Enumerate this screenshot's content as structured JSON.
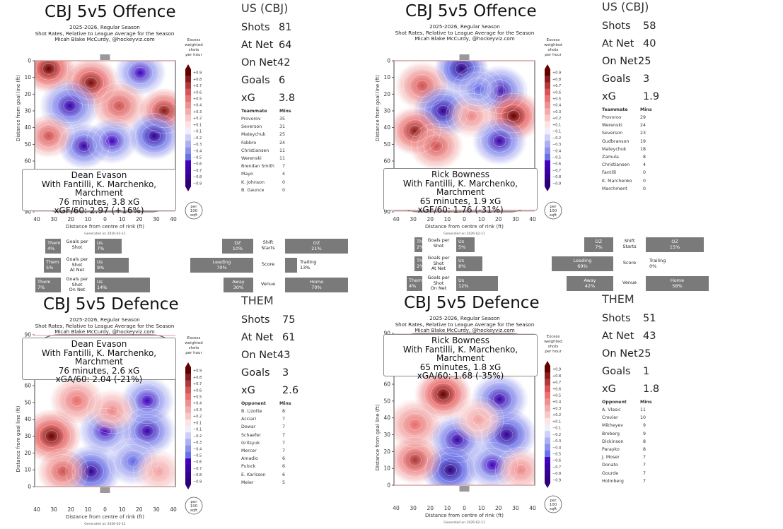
{
  "panels": {
    "o1": {
      "title": "CBJ 5v5 Offence",
      "subtitle": [
        "2025-2026, Regular Season",
        "Shot Rates, Relative to League Average for the Season",
        "Micah Blake McCurdy, @hockeyviz.com"
      ],
      "info": [
        "Dean Evason",
        "With Fantilli, K. Marchenko, Marchment",
        "76 minutes, 3.8 xG",
        "xGF/60: 2.97 (+16%)"
      ],
      "generated": "Generated on 2026-02-11"
    },
    "o2": {
      "title": "CBJ 5v5 Offence",
      "subtitle": [
        "2025-2026, Regular Season",
        "Shot Rates, Relative to League Average for the Season",
        "Micah Blake McCurdy, @hockeyviz.com"
      ],
      "info": [
        "Rick Bowness",
        "With Fantilli, K. Marchenko, Marchment",
        "65 minutes, 1.9 xG",
        "xGF/60: 1.76 (-31%)"
      ],
      "generated": "Generated on 2026-02-11"
    },
    "d1": {
      "title": "CBJ 5v5 Defence",
      "subtitle": [
        "2025-2026, Regular Season",
        "Shot Rates, Relative to League Average for the Season",
        "Micah Blake McCurdy, @hockeyviz.com"
      ],
      "info": [
        "Dean Evason",
        "With Fantilli, K. Marchenko, Marchment",
        "76 minutes, 2.6 xG",
        "xGA/60: 2.04 (-21%)"
      ],
      "generated": "Generated on 2026-02-11"
    },
    "d2": {
      "title": "CBJ 5v5 Defence",
      "subtitle": [
        "2025-2026, Regular Season",
        "Shot Rates, Relative to League Average for the Season",
        "Micah Blake McCurdy, @hockeyviz.com"
      ],
      "info": [
        "Rick Bowness",
        "With Fantilli, K. Marchenko, Marchment",
        "65 minutes, 1.8 xG",
        "xGA/60: 1.68 (-35%)"
      ],
      "generated": "Generated on 2026-02-11"
    }
  },
  "labels": {
    "ylabel": "Distance from goal line (ft)",
    "xlabel": "Distance from centre of rink (ft)",
    "cbar_title": [
      "Excess",
      "weighted",
      "shots",
      "per hour"
    ],
    "per100": [
      "per",
      "100",
      "sqft"
    ]
  },
  "stats": {
    "s1": {
      "header": "US (CBJ)",
      "rows": [
        [
          "Shots",
          "81"
        ],
        [
          "At Net",
          "64"
        ],
        [
          "On Net",
          "42"
        ],
        [
          "Goals",
          "6"
        ],
        [
          "xG",
          "3.8"
        ]
      ],
      "mates_header": [
        "Teammate",
        "Mins"
      ],
      "mates": [
        [
          "Provorov",
          "35"
        ],
        [
          "Severson",
          "31"
        ],
        [
          "Mateychuk",
          "25"
        ],
        [
          "Fabbro",
          "24"
        ],
        [
          "Christiansen",
          "11"
        ],
        [
          "Werenski",
          "11"
        ],
        [
          "Brendan Smith",
          "7"
        ],
        [
          "Mayo",
          "4"
        ],
        [
          "K. Johnson",
          "0"
        ],
        [
          "B. Gaunce",
          "0"
        ]
      ]
    },
    "s2": {
      "header": "US (CBJ)",
      "rows": [
        [
          "Shots",
          "58"
        ],
        [
          "At Net",
          "40"
        ],
        [
          "On Net",
          "25"
        ],
        [
          "Goals",
          "3"
        ],
        [
          "xG",
          "1.9"
        ]
      ],
      "mates_header": [
        "Teammate",
        "Mins"
      ],
      "mates": [
        [
          "Provorov",
          "29"
        ],
        [
          "Werenski",
          "24"
        ],
        [
          "Severson",
          "23"
        ],
        [
          "Gudbranson",
          "19"
        ],
        [
          "Mateychuk",
          "18"
        ],
        [
          "Zamula",
          "8"
        ],
        [
          "Christiansen",
          "4"
        ],
        [
          "Fantilli",
          "0"
        ],
        [
          "K. Marchenko",
          "0"
        ],
        [
          "Marchment",
          "0"
        ]
      ]
    },
    "s3": {
      "header": "THEM",
      "rows": [
        [
          "Shots",
          "75"
        ],
        [
          "At Net",
          "61"
        ],
        [
          "On Net",
          "43"
        ],
        [
          "Goals",
          "3"
        ],
        [
          "xG",
          "2.6"
        ]
      ],
      "mates_header": [
        "Opponent",
        "Mins"
      ],
      "mates": [
        [
          "B. Lizotte",
          "8"
        ],
        [
          "Acciari",
          "7"
        ],
        [
          "Dewar",
          "7"
        ],
        [
          "Schaefer",
          "7"
        ],
        [
          "Gritsyuk",
          "7"
        ],
        [
          "Mercer",
          "7"
        ],
        [
          "Amadio",
          "6"
        ],
        [
          "Pulock",
          "6"
        ],
        [
          "E. Karlsson",
          "6"
        ],
        [
          "Meier",
          "5"
        ]
      ]
    },
    "s4": {
      "header": "THEM",
      "rows": [
        [
          "Shots",
          "51"
        ],
        [
          "At Net",
          "43"
        ],
        [
          "On Net",
          "25"
        ],
        [
          "Goals",
          "1"
        ],
        [
          "xG",
          "1.8"
        ]
      ],
      "mates_header": [
        "Opponent",
        "Mins"
      ],
      "mates": [
        [
          "A. Vlasic",
          "11"
        ],
        [
          "Crevier",
          "10"
        ],
        [
          "Mikheyev",
          "9"
        ],
        [
          "Broberg",
          "9"
        ],
        [
          "Dickinson",
          "8"
        ],
        [
          "Parayko",
          "8"
        ],
        [
          "J. Moser",
          "7"
        ],
        [
          "Donato",
          "7"
        ],
        [
          "Gourde",
          "7"
        ],
        [
          "Holmberg",
          "7"
        ]
      ]
    }
  },
  "bars": {
    "left": {
      "goals_shot": {
        "label": [
          "Goals per",
          "Shot"
        ],
        "them": [
          "Them",
          "4%"
        ],
        "us": [
          "Us",
          "7%"
        ]
      },
      "goals_atnet": {
        "label": [
          "Goals per",
          "Shot",
          "At Net"
        ],
        "them": [
          "Them",
          "5%"
        ],
        "us": [
          "Us",
          "9%"
        ]
      },
      "goals_onnet": {
        "label": [
          "Goals per",
          "Shot",
          "On Net"
        ],
        "them": [
          "Them",
          "7%"
        ],
        "us": [
          "Us",
          "14%"
        ]
      },
      "shift": {
        "label": [
          "Shift",
          "Starts"
        ],
        "dz": [
          "DZ",
          "10%"
        ],
        "oz": [
          "OZ",
          "21%"
        ]
      },
      "score": {
        "label": [
          "Score"
        ],
        "leading": [
          "Leading",
          "70%"
        ],
        "trailing": [
          "Trailing",
          "13%"
        ]
      },
      "venue": {
        "label": [
          "Venue"
        ],
        "away": [
          "Away",
          "30%"
        ],
        "home": [
          "Home",
          "70%"
        ]
      }
    },
    "right": {
      "goals_shot": {
        "label": [
          "Goals per",
          "Shot"
        ],
        "them": [
          "Them",
          "2%"
        ],
        "us": [
          "Us",
          "5%"
        ]
      },
      "goals_atnet": {
        "label": [
          "Goals per",
          "Shot",
          "At Net"
        ],
        "them": [
          "Them",
          "2%"
        ],
        "us": [
          "Us",
          "8%"
        ]
      },
      "goals_onnet": {
        "label": [
          "Goals per",
          "Shot",
          "On Net"
        ],
        "them": [
          "Them",
          "4%"
        ],
        "us": [
          "Us",
          "12%"
        ]
      },
      "shift": {
        "label": [
          "Shift",
          "Starts"
        ],
        "dz": [
          "DZ",
          "7%"
        ],
        "oz": [
          "OZ",
          "15%"
        ]
      },
      "score": {
        "label": [
          "Score"
        ],
        "leading": [
          "Leading",
          "69%"
        ],
        "trailing": [
          "Trailing",
          "0%"
        ]
      },
      "venue": {
        "label": [
          "Venue"
        ],
        "away": [
          "Away",
          "42%"
        ],
        "home": [
          "Home",
          "58%"
        ]
      }
    }
  },
  "chart_data": [
    {
      "type": "heatmap",
      "title": "CBJ 5v5 Offence (Dean Evason)",
      "xlabel": "Distance from centre of rink (ft)",
      "ylabel": "Distance from goal line (ft)",
      "x_ticks": [
        40,
        30,
        20,
        10,
        0,
        10,
        20,
        30,
        40
      ],
      "y_ticks": [
        0,
        10,
        20,
        30,
        40,
        50,
        60,
        90
      ],
      "colorbar_ticks": [
        0.9,
        0.8,
        0.7,
        0.6,
        0.5,
        0.4,
        0.3,
        0.2,
        0.1,
        -0.1,
        -0.2,
        -0.3,
        -0.4,
        -0.5,
        -0.6,
        -0.7,
        -0.8,
        -0.9
      ],
      "colorbar_labels": [
        "+0.9",
        "+0.8",
        "+0.7",
        "+0.6",
        "+0.5",
        "+0.4",
        "+0.3",
        "+0.2",
        "+0.1",
        "−0.1",
        "−0.2",
        "−0.3",
        "−0.4",
        "−0.5",
        "−0.6",
        "−0.7",
        "−0.8",
        "−0.9"
      ],
      "colorbar_range": [
        -0.9,
        0.9
      ]
    },
    {
      "type": "heatmap",
      "title": "CBJ 5v5 Offence (Rick Bowness)",
      "xlabel": "Distance from centre of rink (ft)",
      "ylabel": "Distance from goal line (ft)",
      "x_ticks": [
        40,
        30,
        20,
        10,
        0,
        10,
        20,
        30,
        40
      ],
      "y_ticks": [
        0,
        10,
        20,
        30,
        40,
        50,
        60,
        90
      ],
      "colorbar_range": [
        -0.9,
        0.9
      ]
    },
    {
      "type": "heatmap",
      "title": "CBJ 5v5 Defence (Dean Evason)",
      "xlabel": "Distance from centre of rink (ft)",
      "ylabel": "Distance from goal line (ft)",
      "x_ticks": [
        40,
        30,
        20,
        10,
        0,
        10,
        20,
        30,
        40
      ],
      "y_ticks": [
        90,
        60,
        50,
        40,
        30,
        20,
        10,
        0
      ],
      "colorbar_range": [
        -0.9,
        0.9
      ]
    },
    {
      "type": "heatmap",
      "title": "CBJ 5v5 Defence (Rick Bowness)",
      "xlabel": "Distance from centre of rink (ft)",
      "ylabel": "Distance from goal line (ft)",
      "x_ticks": [
        40,
        30,
        20,
        10,
        0,
        10,
        20,
        30,
        40
      ],
      "y_ticks": [
        90,
        60,
        50,
        40,
        30,
        20,
        10,
        0
      ],
      "colorbar_range": [
        -0.9,
        0.9
      ]
    }
  ],
  "colors": {
    "bar": "#7a7a7a",
    "red": "#c0141c",
    "blue": "#2a3fd0",
    "dark_red": "#5a0000",
    "dark_blue": "#2a0070"
  },
  "heat_blobs": {
    "o1": [
      [
        0.1,
        0.08,
        0.9,
        0.7
      ],
      [
        0.4,
        0.22,
        0.85,
        0.8
      ],
      [
        0.75,
        0.12,
        -0.6,
        0.6
      ],
      [
        0.25,
        0.45,
        -0.7,
        0.9
      ],
      [
        0.6,
        0.45,
        0.6,
        0.8
      ],
      [
        0.92,
        0.5,
        0.8,
        0.6
      ],
      [
        0.85,
        0.75,
        -0.8,
        0.7
      ],
      [
        0.35,
        0.85,
        -0.7,
        0.6
      ],
      [
        0.55,
        0.8,
        -0.6,
        0.6
      ],
      [
        0.1,
        0.75,
        0.6,
        0.5
      ]
    ],
    "o2": [
      [
        0.48,
        0.08,
        -0.9,
        0.7
      ],
      [
        0.2,
        0.25,
        0.6,
        0.7
      ],
      [
        0.75,
        0.3,
        -0.7,
        0.8
      ],
      [
        0.35,
        0.5,
        -0.8,
        0.9
      ],
      [
        0.15,
        0.7,
        0.8,
        0.7
      ],
      [
        0.85,
        0.55,
        0.9,
        0.8
      ],
      [
        0.55,
        0.55,
        0.4,
        0.5
      ],
      [
        0.75,
        0.8,
        -0.7,
        0.7
      ],
      [
        0.3,
        0.85,
        0.6,
        0.7
      ],
      [
        0.6,
        0.28,
        -0.5,
        0.5
      ]
    ],
    "d1": [
      [
        0.3,
        0.15,
        0.5,
        0.7
      ],
      [
        0.8,
        0.15,
        -0.6,
        0.7
      ],
      [
        0.12,
        0.5,
        0.9,
        0.9
      ],
      [
        0.5,
        0.45,
        -0.6,
        0.7
      ],
      [
        0.8,
        0.45,
        -0.7,
        0.8
      ],
      [
        0.4,
        0.85,
        -0.8,
        0.9
      ],
      [
        0.2,
        0.85,
        0.6,
        0.6
      ],
      [
        0.7,
        0.75,
        -0.5,
        0.7
      ],
      [
        0.88,
        0.85,
        0.3,
        0.5
      ],
      [
        0.55,
        0.25,
        0.4,
        0.5
      ]
    ],
    "d2": [
      [
        0.35,
        0.1,
        0.9,
        0.8
      ],
      [
        0.75,
        0.15,
        -0.7,
        0.8
      ],
      [
        0.15,
        0.4,
        0.5,
        0.8
      ],
      [
        0.45,
        0.55,
        -0.7,
        0.8
      ],
      [
        0.8,
        0.5,
        -0.8,
        0.9
      ],
      [
        0.4,
        0.85,
        -0.9,
        0.8
      ],
      [
        0.7,
        0.8,
        -0.6,
        0.7
      ],
      [
        0.15,
        0.75,
        0.7,
        0.7
      ],
      [
        0.6,
        0.35,
        0.3,
        0.6
      ],
      [
        0.9,
        0.85,
        0.4,
        0.5
      ]
    ]
  }
}
